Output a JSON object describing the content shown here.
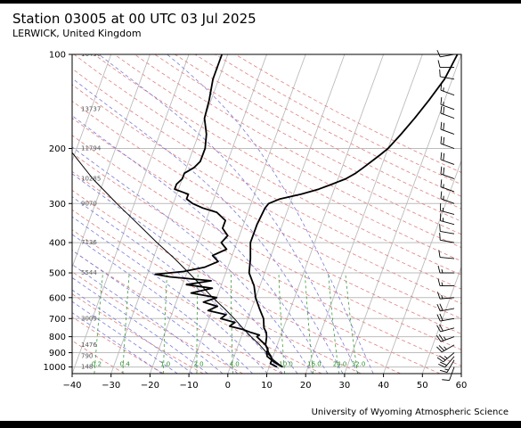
{
  "title": "Station 03005 at 00 UTC 03 Jul 2025",
  "subtitle": "LERWICK, United Kingdom",
  "footer": "University of Wyoming Atmospheric Science",
  "chart_data": {
    "type": "skew-t log-p",
    "title": "Station 03005 at 00 UTC 03 Jul 2025",
    "subtitle": "LERWICK, United Kingdom",
    "x_axis": {
      "label": "",
      "range": [
        -40,
        60
      ],
      "ticks": [
        -40,
        -30,
        -20,
        -10,
        0,
        10,
        20,
        30,
        40,
        50,
        60
      ]
    },
    "y_axis": {
      "label": "",
      "scale": "log",
      "range": [
        1050,
        100
      ],
      "ticks": [
        1000,
        900,
        800,
        700,
        600,
        500,
        400,
        300,
        200,
        100
      ]
    },
    "grid": true,
    "height_labels": [
      {
        "p": 100,
        "text": "16456"
      },
      {
        "p": 150,
        "text": "13737"
      },
      {
        "p": 200,
        "text": "11794"
      },
      {
        "p": 250,
        "text": "10285"
      },
      {
        "p": 300,
        "text": "9070"
      },
      {
        "p": 400,
        "text": "7136"
      },
      {
        "p": 500,
        "text": "5544"
      },
      {
        "p": 700,
        "text": "3009"
      },
      {
        "p": 850,
        "text": "1476"
      },
      {
        "p": 925,
        "text": "790"
      },
      {
        "p": 1000,
        "text": "148"
      }
    ],
    "mixing_ratio_labels": [
      "0.2",
      "0.4",
      "1.0",
      "2.0",
      "4.0",
      "10.0",
      "16.0",
      "24.0",
      "32.0"
    ],
    "mixing_ratio_values": [
      0.2,
      0.4,
      1,
      2,
      4,
      10,
      16,
      24,
      32
    ],
    "series": [
      {
        "name": "temperature",
        "color": "#000000",
        "points": [
          [
            1000,
            13.5
          ],
          [
            975,
            11.5
          ],
          [
            950,
            10.0
          ],
          [
            925,
            9.5
          ],
          [
            900,
            8.5
          ],
          [
            875,
            7.8
          ],
          [
            850,
            7.0
          ],
          [
            800,
            6.5
          ],
          [
            775,
            6.0
          ],
          [
            750,
            5.0
          ],
          [
            700,
            4.0
          ],
          [
            650,
            2.0
          ],
          [
            600,
            0.0
          ],
          [
            550,
            -1.5
          ],
          [
            500,
            -4.0
          ],
          [
            450,
            -5.0
          ],
          [
            400,
            -6.5
          ],
          [
            350,
            -6.5
          ],
          [
            310,
            -6.0
          ],
          [
            300,
            -5.5
          ],
          [
            290,
            -3.0
          ],
          [
            280,
            2.0
          ],
          [
            270,
            6.0
          ],
          [
            260,
            9.0
          ],
          [
            250,
            12.0
          ],
          [
            240,
            14.0
          ],
          [
            230,
            15.5
          ],
          [
            220,
            17.0
          ],
          [
            210,
            18.5
          ],
          [
            200,
            20.0
          ],
          [
            180,
            22.0
          ],
          [
            160,
            24.0
          ],
          [
            140,
            26.0
          ],
          [
            120,
            28.0
          ],
          [
            110,
            28.5
          ],
          [
            100,
            29.0
          ]
        ]
      },
      {
        "name": "dewpoint",
        "color": "#000000",
        "points": [
          [
            1000,
            12.0
          ],
          [
            975,
            10.0
          ],
          [
            950,
            10.0
          ],
          [
            925,
            8.5
          ],
          [
            900,
            8.0
          ],
          [
            875,
            8.0
          ],
          [
            850,
            7.0
          ],
          [
            825,
            5.5
          ],
          [
            800,
            4.0
          ],
          [
            790,
            4.5
          ],
          [
            775,
            2.0
          ],
          [
            760,
            0.0
          ],
          [
            740,
            -4.0
          ],
          [
            720,
            -3.0
          ],
          [
            700,
            -7.0
          ],
          [
            680,
            -6.0
          ],
          [
            660,
            -11.0
          ],
          [
            640,
            -9.0
          ],
          [
            620,
            -13.0
          ],
          [
            600,
            -10.0
          ],
          [
            580,
            -17.0
          ],
          [
            560,
            -12.0
          ],
          [
            545,
            -19.0
          ],
          [
            530,
            -13.0
          ],
          [
            515,
            -24.0
          ],
          [
            505,
            -28.0
          ],
          [
            495,
            -21.0
          ],
          [
            480,
            -16.0
          ],
          [
            460,
            -13.0
          ],
          [
            440,
            -15.0
          ],
          [
            420,
            -12.0
          ],
          [
            400,
            -14.0
          ],
          [
            380,
            -13.0
          ],
          [
            360,
            -15.0
          ],
          [
            340,
            -15.0
          ],
          [
            320,
            -18.0
          ],
          [
            310,
            -22.0
          ],
          [
            300,
            -25.0
          ],
          [
            290,
            -27.0
          ],
          [
            280,
            -27.0
          ],
          [
            270,
            -31.0
          ],
          [
            260,
            -31.0
          ],
          [
            250,
            -30.0
          ],
          [
            240,
            -30.0
          ],
          [
            230,
            -28.0
          ],
          [
            220,
            -27.0
          ],
          [
            200,
            -27.0
          ],
          [
            180,
            -28.0
          ],
          [
            160,
            -30.0
          ],
          [
            140,
            -30.5
          ],
          [
            120,
            -31.5
          ],
          [
            110,
            -31.5
          ],
          [
            100,
            -31.5
          ]
        ]
      },
      {
        "name": "parcel",
        "color": "#000000",
        "points": [
          [
            1000,
            13.5
          ],
          [
            950,
            10.5
          ],
          [
            900,
            8.0
          ],
          [
            850,
            5.5
          ],
          [
            800,
            2.5
          ],
          [
            750,
            -0.5
          ],
          [
            700,
            -3.5
          ],
          [
            650,
            -7.0
          ],
          [
            600,
            -11.0
          ],
          [
            550,
            -15.0
          ],
          [
            500,
            -19.5
          ],
          [
            450,
            -24.5
          ],
          [
            400,
            -30.5
          ],
          [
            350,
            -37.0
          ],
          [
            300,
            -44.5
          ],
          [
            250,
            -53.0
          ],
          [
            200,
            -62.0
          ],
          [
            150,
            -72.0
          ],
          [
            100,
            -84.0
          ]
        ]
      }
    ],
    "wind_barbs": [
      {
        "p": 1000,
        "dir": 200,
        "spd": 10
      },
      {
        "p": 950,
        "dir": 210,
        "spd": 15
      },
      {
        "p": 925,
        "dir": 220,
        "spd": 20
      },
      {
        "p": 900,
        "dir": 230,
        "spd": 25
      },
      {
        "p": 850,
        "dir": 240,
        "spd": 25
      },
      {
        "p": 800,
        "dir": 250,
        "spd": 25
      },
      {
        "p": 750,
        "dir": 255,
        "spd": 20
      },
      {
        "p": 700,
        "dir": 260,
        "spd": 20
      },
      {
        "p": 650,
        "dir": 260,
        "spd": 20
      },
      {
        "p": 600,
        "dir": 265,
        "spd": 15
      },
      {
        "p": 550,
        "dir": 270,
        "spd": 15
      },
      {
        "p": 500,
        "dir": 270,
        "spd": 15
      },
      {
        "p": 450,
        "dir": 275,
        "spd": 10
      },
      {
        "p": 400,
        "dir": 280,
        "spd": 10
      },
      {
        "p": 375,
        "dir": 280,
        "spd": 10
      },
      {
        "p": 350,
        "dir": 285,
        "spd": 15
      },
      {
        "p": 325,
        "dir": 285,
        "spd": 15
      },
      {
        "p": 300,
        "dir": 290,
        "spd": 15
      },
      {
        "p": 275,
        "dir": 290,
        "spd": 15
      },
      {
        "p": 250,
        "dir": 290,
        "spd": 20
      },
      {
        "p": 225,
        "dir": 290,
        "spd": 20
      },
      {
        "p": 200,
        "dir": 290,
        "spd": 20
      },
      {
        "p": 180,
        "dir": 290,
        "spd": 20
      },
      {
        "p": 160,
        "dir": 290,
        "spd": 20
      },
      {
        "p": 150,
        "dir": 290,
        "spd": 15
      },
      {
        "p": 135,
        "dir": 290,
        "spd": 15
      },
      {
        "p": 120,
        "dir": 280,
        "spd": 10
      },
      {
        "p": 110,
        "dir": 270,
        "spd": 10
      },
      {
        "p": 100,
        "dir": 260,
        "spd": 10
      }
    ],
    "colors": {
      "isotherm": "#bcbcbc",
      "isobar": "#bcbcbc",
      "dry_adiabat": "#e08080",
      "moist_adiabat": "#7b7bd6",
      "mixing_ratio": "#3d9b3d",
      "sounding": "#000000"
    }
  }
}
